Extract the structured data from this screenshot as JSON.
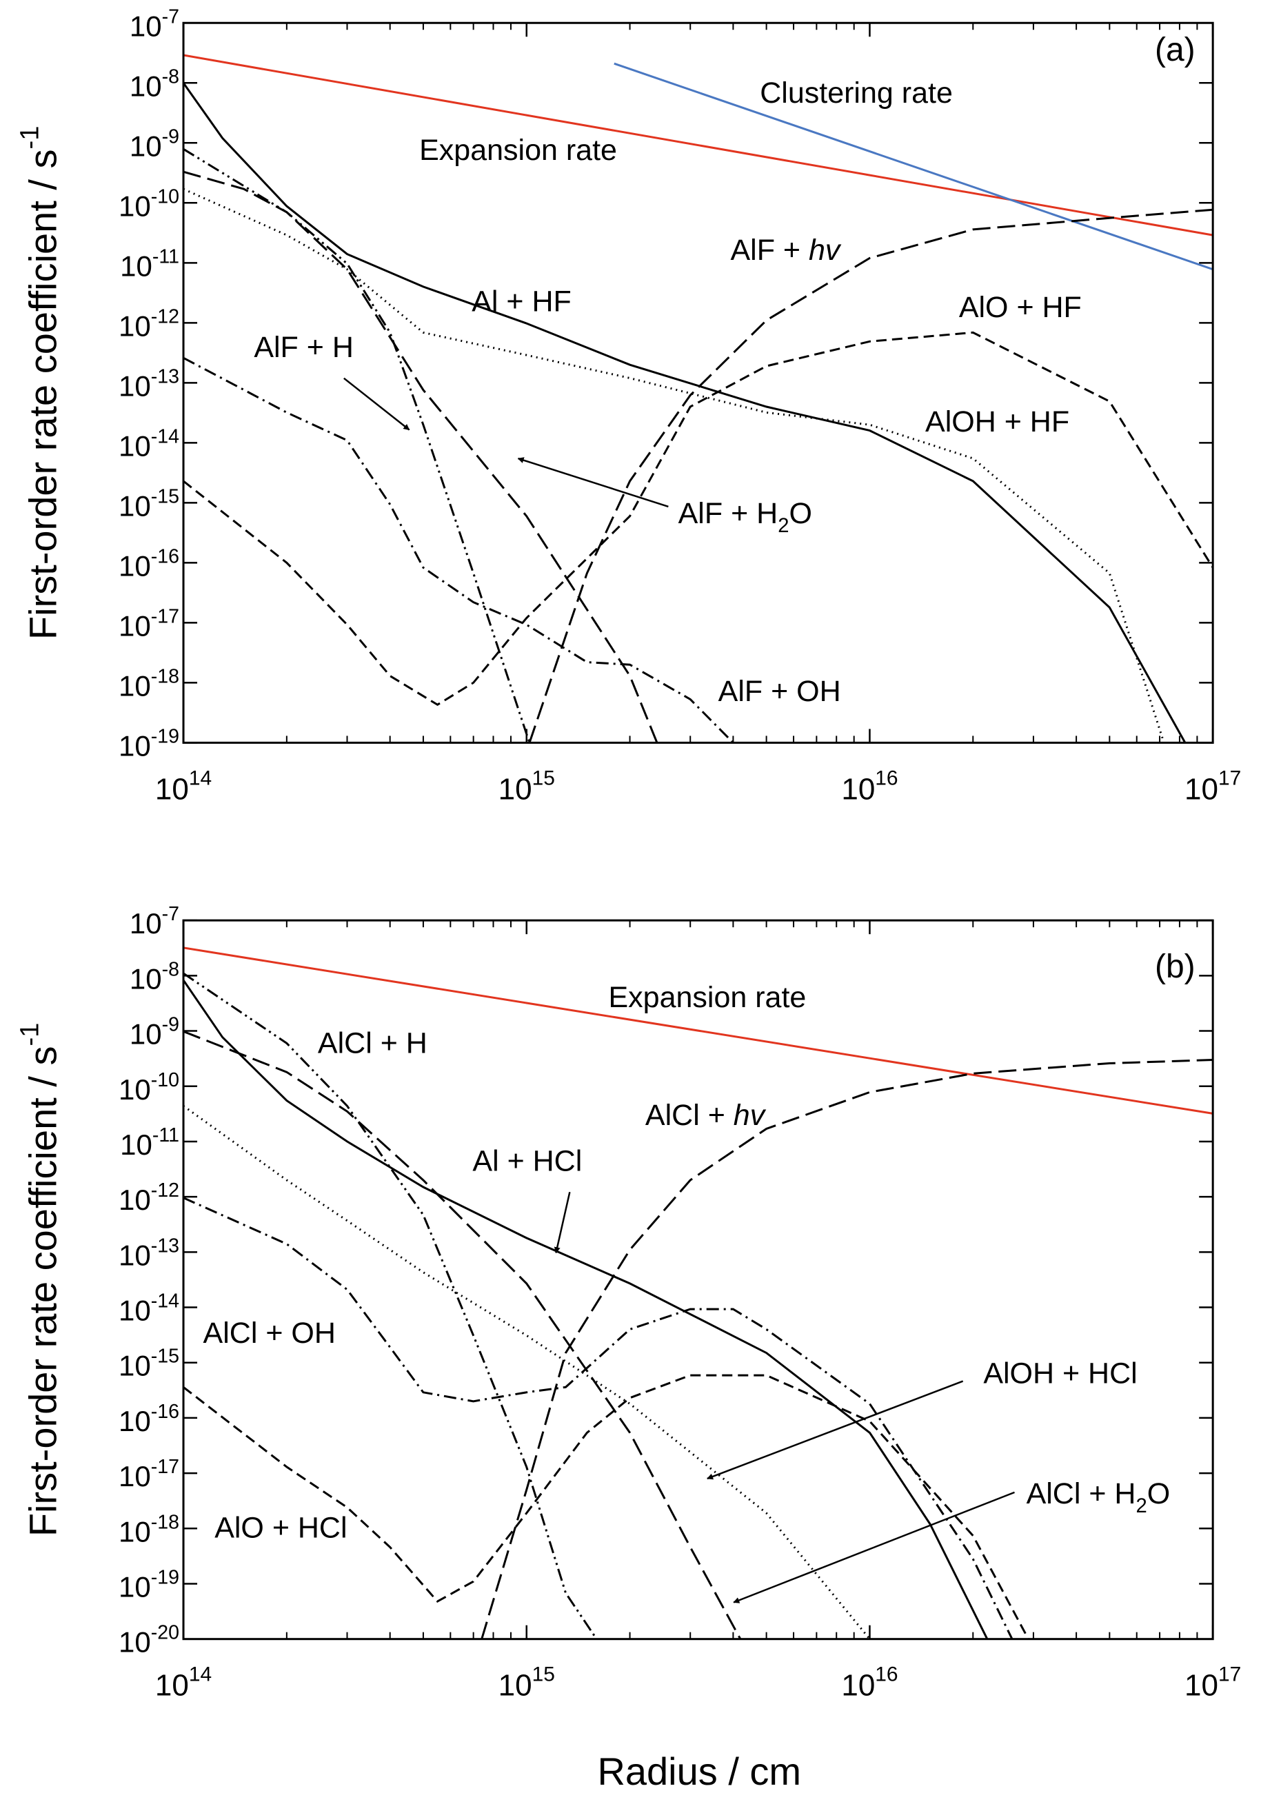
{
  "chart_data": [
    {
      "type": "line",
      "panel_label": [
        {
          "t": "(a)"
        }
      ],
      "ylabel": [
        {
          "t": "First-order rate coefficient / s"
        },
        {
          "sup": "-1"
        }
      ],
      "xscale": "log",
      "yscale": "log",
      "xminor": true,
      "xlim": [
        100000000000000.0,
        1e+17
      ],
      "ylim": [
        1e-19,
        1e-07
      ],
      "xticks": [
        {
          "value": 100000000000000.0,
          "label": [
            {
              "t": "10"
            },
            {
              "sup": "14"
            }
          ]
        },
        {
          "value": 1000000000000000.0,
          "label": [
            {
              "t": "10"
            },
            {
              "sup": "15"
            }
          ]
        },
        {
          "value": 1e+16,
          "label": [
            {
              "t": "10"
            },
            {
              "sup": "16"
            }
          ]
        },
        {
          "value": 1e+17,
          "label": [
            {
              "t": "10"
            },
            {
              "sup": "17"
            }
          ]
        }
      ],
      "yticks": [
        {
          "value": 1e-07,
          "label": [
            {
              "t": "10"
            },
            {
              "sup": "-7"
            }
          ]
        },
        {
          "value": 1e-08,
          "label": [
            {
              "t": "10"
            },
            {
              "sup": "-8"
            }
          ]
        },
        {
          "value": 1e-09,
          "label": [
            {
              "t": "10"
            },
            {
              "sup": "-9"
            }
          ]
        },
        {
          "value": 1e-10,
          "label": [
            {
              "t": "10"
            },
            {
              "sup": "-10"
            }
          ]
        },
        {
          "value": 1e-11,
          "label": [
            {
              "t": "10"
            },
            {
              "sup": "-11"
            }
          ]
        },
        {
          "value": 1e-12,
          "label": [
            {
              "t": "10"
            },
            {
              "sup": "-12"
            }
          ]
        },
        {
          "value": 1e-13,
          "label": [
            {
              "t": "10"
            },
            {
              "sup": "-13"
            }
          ]
        },
        {
          "value": 1e-14,
          "label": [
            {
              "t": "10"
            },
            {
              "sup": "-14"
            }
          ]
        },
        {
          "value": 1e-15,
          "label": [
            {
              "t": "10"
            },
            {
              "sup": "-15"
            }
          ]
        },
        {
          "value": 1e-16,
          "label": [
            {
              "t": "10"
            },
            {
              "sup": "-16"
            }
          ]
        },
        {
          "value": 1e-17,
          "label": [
            {
              "t": "10"
            },
            {
              "sup": "-17"
            }
          ]
        },
        {
          "value": 1e-18,
          "label": [
            {
              "t": "10"
            },
            {
              "sup": "-18"
            }
          ]
        },
        {
          "value": 1e-19,
          "label": [
            {
              "t": "10"
            },
            {
              "sup": "-19"
            }
          ]
        }
      ],
      "series": [
        {
          "name": [
            {
              "t": "Expansion rate"
            }
          ],
          "color": "#e2351f",
          "style": "solid",
          "x": [
            100000000000000.0,
            1000000000000000.0,
            1e+16,
            1e+17
          ],
          "values": [
            2.9e-08,
            2.9e-09,
            2.9e-10,
            2.9e-11
          ]
        },
        {
          "name": [
            {
              "t": "Clustering rate"
            }
          ],
          "color": "#4a78c2",
          "style": "solid",
          "x": [
            1800000000000000.0,
            1e+17
          ],
          "values": [
            2.1e-08,
            7.8e-12
          ]
        },
        {
          "name": [
            {
              "t": "Al + HF"
            }
          ],
          "color": "#000000",
          "style": "solid",
          "x": [
            100000000000000.0,
            130000000000000.0,
            200000000000000.0,
            300000000000000.0,
            500000000000000.0,
            1000000000000000.0,
            2000000000000000.0,
            5000000000000000.0,
            1e+16,
            2e+16,
            5e+16,
            8.3e+16
          ],
          "values": [
            1e-08,
            1.2e-09,
            8.8e-11,
            1.4e-11,
            4e-12,
            9.8e-13,
            2e-13,
            4e-14,
            1.6e-14,
            2.3e-15,
            1.8e-17,
            1e-19
          ]
        },
        {
          "name": [
            {
              "t": "AlOH + HF"
            }
          ],
          "color": "#000000",
          "style": "dot",
          "x": [
            100000000000000.0,
            200000000000000.0,
            300000000000000.0,
            500000000000000.0,
            1000000000000000.0,
            2000000000000000.0,
            5000000000000000.0,
            1e+16,
            2e+16,
            5e+16,
            7.2e+16
          ],
          "values": [
            1.7e-10,
            2.9e-11,
            7.8e-12,
            6.9e-13,
            2.9e-13,
            1.2e-13,
            3.2e-14,
            2e-14,
            5.5e-15,
            6.7e-17,
            1e-19
          ]
        },
        {
          "name": [
            {
              "t": "AlF + "
            },
            {
              "i": "hv"
            }
          ],
          "color": "#000000",
          "style": "longdash",
          "x": [
            1020000000000000.0,
            1500000000000000.0,
            2000000000000000.0,
            3000000000000000.0,
            5000000000000000.0,
            1e+16,
            2e+16,
            5e+16,
            1e+17
          ],
          "values": [
            1e-19,
            6.7e-17,
            2.3e-15,
            6.2e-14,
            1.1e-12,
            1.2e-11,
            3.6e-11,
            5.6e-11,
            7.7e-11
          ]
        },
        {
          "name": [
            {
              "t": "AlO + HF"
            }
          ],
          "color": "#000000",
          "style": "dash",
          "x": [
            100000000000000.0,
            200000000000000.0,
            300000000000000.0,
            400000000000000.0,
            550000000000000.0,
            700000000000000.0,
            1000000000000000.0,
            2000000000000000.0,
            3000000000000000.0,
            5000000000000000.0,
            1e+16,
            2e+16,
            5e+16,
            1e+17
          ],
          "values": [
            2.3e-15,
            1e-16,
            9.3e-18,
            1.3e-18,
            4.3e-19,
            1e-18,
            1.2e-17,
            6e-16,
            4e-14,
            1.9e-13,
            4.9e-13,
            6.9e-13,
            4.9e-14,
            8.3e-17
          ]
        },
        {
          "name": [
            {
              "t": "AlF + H"
            }
          ],
          "color": "#000000",
          "style": "dashdotdot",
          "x": [
            100000000000000.0,
            200000000000000.0,
            300000000000000.0,
            400000000000000.0,
            500000000000000.0,
            700000000000000.0,
            1000000000000000.0,
            1020000000000000.0
          ],
          "values": [
            7.9e-10,
            7e-11,
            9.7e-12,
            6.9e-13,
            2e-14,
            6.7e-17,
            1.4e-19,
            1e-19
          ]
        },
        {
          "name": [
            {
              "t": "AlF + H"
            },
            {
              "sub": "2"
            },
            {
              "t": "O"
            }
          ],
          "color": "#000000",
          "style": "longdash",
          "x": [
            100000000000000.0,
            150000000000000.0,
            200000000000000.0,
            300000000000000.0,
            500000000000000.0,
            1000000000000000.0,
            2000000000000000.0,
            2400000000000000.0
          ],
          "values": [
            3.3e-10,
            1.7e-10,
            7e-11,
            7.8e-12,
            7.6e-14,
            6e-16,
            1.3e-18,
            1e-19
          ]
        },
        {
          "name": [
            {
              "t": "AlF + OH"
            }
          ],
          "color": "#000000",
          "style": "dashdot",
          "x": [
            100000000000000.0,
            200000000000000.0,
            300000000000000.0,
            400000000000000.0,
            500000000000000.0,
            700000000000000.0,
            1000000000000000.0,
            1500000000000000.0,
            2000000000000000.0,
            3000000000000000.0,
            4000000000000000.0
          ],
          "values": [
            2.6e-13,
            3.2e-14,
            1.1e-14,
            9.4e-16,
            8.3e-17,
            2.2e-17,
            9.3e-18,
            2.2e-18,
            2e-18,
            5.3e-19,
            1e-19
          ]
        }
      ]
    },
    {
      "type": "line",
      "panel_label": [
        {
          "t": "(b)"
        }
      ],
      "ylabel": [
        {
          "t": "First-order rate coefficient / s"
        },
        {
          "sup": "-1"
        }
      ],
      "xlabel": [
        {
          "t": "Radius / cm"
        }
      ],
      "xscale": "log",
      "yscale": "log",
      "xminor": true,
      "xlim": [
        100000000000000.0,
        1e+17
      ],
      "ylim": [
        1e-20,
        1e-07
      ],
      "xticks": [
        {
          "value": 100000000000000.0,
          "label": [
            {
              "t": "10"
            },
            {
              "sup": "14"
            }
          ]
        },
        {
          "value": 1000000000000000.0,
          "label": [
            {
              "t": "10"
            },
            {
              "sup": "15"
            }
          ]
        },
        {
          "value": 1e+16,
          "label": [
            {
              "t": "10"
            },
            {
              "sup": "16"
            }
          ]
        },
        {
          "value": 1e+17,
          "label": [
            {
              "t": "10"
            },
            {
              "sup": "17"
            }
          ]
        }
      ],
      "yticks": [
        {
          "value": 1e-07,
          "label": [
            {
              "t": "10"
            },
            {
              "sup": "-7"
            }
          ]
        },
        {
          "value": 1e-08,
          "label": [
            {
              "t": "10"
            },
            {
              "sup": "-8"
            }
          ]
        },
        {
          "value": 1e-09,
          "label": [
            {
              "t": "10"
            },
            {
              "sup": "-9"
            }
          ]
        },
        {
          "value": 1e-10,
          "label": [
            {
              "t": "10"
            },
            {
              "sup": "-10"
            }
          ]
        },
        {
          "value": 1e-11,
          "label": [
            {
              "t": "10"
            },
            {
              "sup": "-11"
            }
          ]
        },
        {
          "value": 1e-12,
          "label": [
            {
              "t": "10"
            },
            {
              "sup": "-12"
            }
          ]
        },
        {
          "value": 1e-13,
          "label": [
            {
              "t": "10"
            },
            {
              "sup": "-13"
            }
          ]
        },
        {
          "value": 1e-14,
          "label": [
            {
              "t": "10"
            },
            {
              "sup": "-14"
            }
          ]
        },
        {
          "value": 1e-15,
          "label": [
            {
              "t": "10"
            },
            {
              "sup": "-15"
            }
          ]
        },
        {
          "value": 1e-16,
          "label": [
            {
              "t": "10"
            },
            {
              "sup": "-16"
            }
          ]
        },
        {
          "value": 1e-17,
          "label": [
            {
              "t": "10"
            },
            {
              "sup": "-17"
            }
          ]
        },
        {
          "value": 1e-18,
          "label": [
            {
              "t": "10"
            },
            {
              "sup": "-18"
            }
          ]
        },
        {
          "value": 1e-19,
          "label": [
            {
              "t": "10"
            },
            {
              "sup": "-19"
            }
          ]
        },
        {
          "value": 1e-20,
          "label": [
            {
              "t": "10"
            },
            {
              "sup": "-20"
            }
          ]
        }
      ],
      "series": [
        {
          "name": [
            {
              "t": "Expansion rate"
            }
          ],
          "color": "#e2351f",
          "style": "solid",
          "x": [
            100000000000000.0,
            1000000000000000.0,
            1e+16,
            1e+17
          ],
          "values": [
            3.2e-08,
            3.2e-09,
            3.2e-10,
            3.2e-11
          ]
        },
        {
          "name": [
            {
              "t": "Al + HCl"
            }
          ],
          "color": "#000000",
          "style": "solid",
          "x": [
            100000000000000.0,
            130000000000000.0,
            200000000000000.0,
            300000000000000.0,
            500000000000000.0,
            1000000000000000.0,
            2000000000000000.0,
            5000000000000000.0,
            1e+16,
            1.5e+16,
            2.2e+16
          ],
          "values": [
            8.3e-09,
            7.7e-10,
            5.5e-11,
            1e-11,
            1.5e-12,
            1.8e-13,
            2.7e-14,
            1.5e-15,
            5.4e-17,
            1.2e-18,
            1e-20
          ]
        },
        {
          "name": [
            {
              "t": "AlCl + H"
            }
          ],
          "color": "#000000",
          "style": "dashdotdot",
          "x": [
            100000000000000.0,
            200000000000000.0,
            300000000000000.0,
            500000000000000.0,
            700000000000000.0,
            1000000000000000.0,
            1300000000000000.0,
            1600000000000000.0
          ],
          "values": [
            1.1e-08,
            6e-10,
            4.4e-11,
            4.7e-13,
            3.1e-15,
            1.3e-17,
            6.8e-20,
            1e-20
          ]
        },
        {
          "name": [
            {
              "t": "AlCl + "
            },
            {
              "i": "hv"
            }
          ],
          "color": "#000000",
          "style": "longdash",
          "x": [
            740000000000000.0,
            1000000000000000.0,
            1300000000000000.0,
            2000000000000000.0,
            3000000000000000.0,
            5000000000000000.0,
            1e+16,
            2e+16,
            5e+16,
            1e+17
          ],
          "values": [
            1e-20,
            5e-18,
            1.5e-15,
            1.1e-13,
            2e-12,
            1.7e-11,
            7.8e-11,
            1.7e-10,
            2.6e-10,
            3e-10
          ]
        },
        {
          "name": [
            {
              "t": "AlCl + H"
            },
            {
              "sub": "2"
            },
            {
              "t": "O"
            }
          ],
          "color": "#000000",
          "style": "longdash",
          "x": [
            100000000000000.0,
            200000000000000.0,
            300000000000000.0,
            500000000000000.0,
            1000000000000000.0,
            2000000000000000.0,
            3000000000000000.0,
            4200000000000000.0
          ],
          "values": [
            9.8e-10,
            1.8e-10,
            3.5e-11,
            2e-12,
            2.7e-14,
            5.4e-17,
            4.6e-19,
            1e-20
          ]
        },
        {
          "name": [
            {
              "t": "AlOH + HCl"
            }
          ],
          "color": "#000000",
          "style": "dot",
          "x": [
            100000000000000.0,
            200000000000000.0,
            300000000000000.0,
            500000000000000.0,
            1000000000000000.0,
            2000000000000000.0,
            5000000000000000.0,
            1e+16
          ],
          "values": [
            4.4e-11,
            2e-12,
            3.7e-13,
            4.3e-14,
            3.1e-15,
            1.8e-16,
            1.9e-18,
            1e-20
          ]
        },
        {
          "name": [
            {
              "t": "AlCl + OH"
            }
          ],
          "color": "#000000",
          "style": "dashdot",
          "x": [
            100000000000000.0,
            200000000000000.0,
            300000000000000.0,
            400000000000000.0,
            500000000000000.0,
            700000000000000.0,
            1000000000000000.0,
            1300000000000000.0,
            2000000000000000.0,
            3000000000000000.0,
            4000000000000000.0,
            5000000000000000.0,
            1e+16,
            2e+16,
            2.6e+16
          ],
          "values": [
            9.6e-13,
            1.4e-13,
            2.1e-14,
            1.9e-15,
            2.9e-16,
            2e-16,
            2.9e-16,
            3.6e-16,
            4e-15,
            9.3e-15,
            9.3e-15,
            4e-15,
            1.8e-16,
            2.8e-19,
            1e-20
          ]
        },
        {
          "name": [
            {
              "t": "AlO + HCl"
            }
          ],
          "color": "#000000",
          "style": "dash",
          "x": [
            100000000000000.0,
            200000000000000.0,
            300000000000000.0,
            400000000000000.0,
            550000000000000.0,
            700000000000000.0,
            1000000000000000.0,
            1500000000000000.0,
            2000000000000000.0,
            3000000000000000.0,
            5000000000000000.0,
            1e+16,
            2e+16,
            2.9e+16
          ],
          "values": [
            3.6e-16,
            1.3e-17,
            2.4e-18,
            4.6e-19,
            4.8e-20,
            1.1e-19,
            1.9e-18,
            5.4e-17,
            2.3e-16,
            5.9e-16,
            5.9e-16,
            8.7e-17,
            7.4e-19,
            1e-20
          ]
        }
      ]
    }
  ]
}
